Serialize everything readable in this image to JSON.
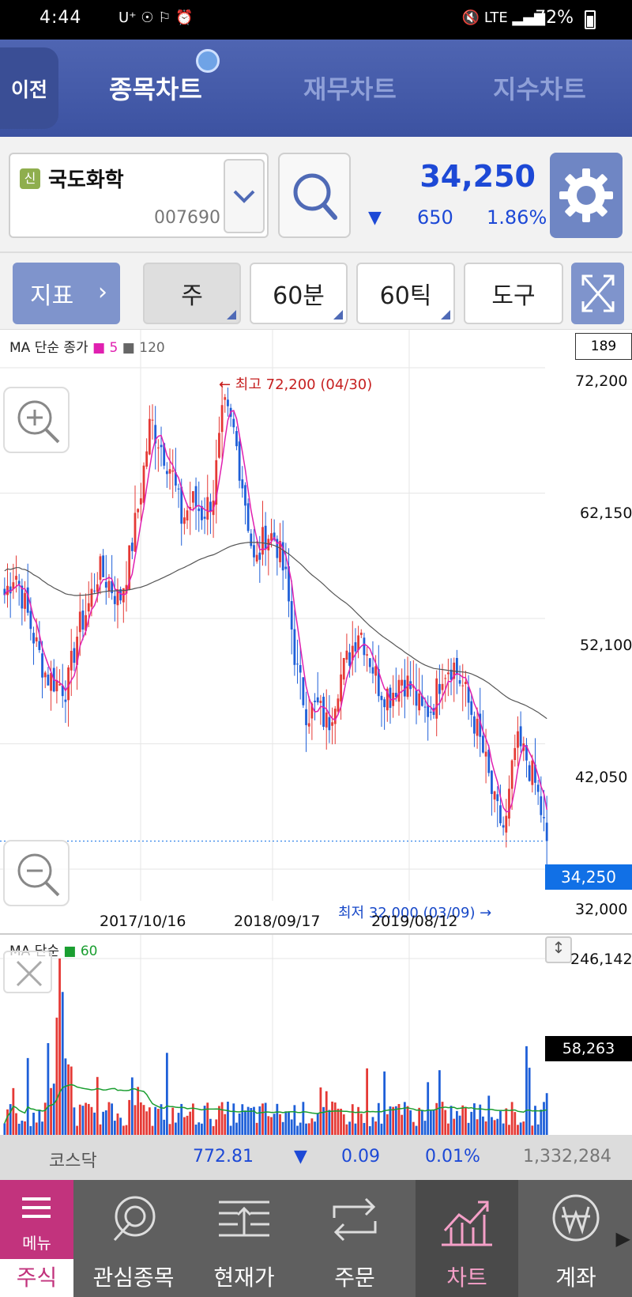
{
  "status_bar": {
    "time": "4:44",
    "carrier": "U⁺",
    "battery": "72%",
    "network": "LTE"
  },
  "header": {
    "back_label": "이전",
    "tabs": [
      {
        "label": "종목차트",
        "active": true
      },
      {
        "label": "재무차트",
        "active": false
      },
      {
        "label": "지수차트",
        "active": false
      }
    ]
  },
  "stock": {
    "market_badge": "신",
    "name": "국도화학",
    "code": "007690",
    "price": "34,250",
    "change_arrow": "▼",
    "change": "650",
    "change_pct": "1.86%"
  },
  "toolbar": {
    "indicator_label": "지표",
    "period_week": "주",
    "period_60min": "60분",
    "period_60tick": "60틱",
    "tools_label": "도구"
  },
  "chart": {
    "legend_prefix": "MA 단순 종가",
    "ma_short": "5",
    "ma_long": "120",
    "count": "189",
    "y_labels": [
      "72,200",
      "62,150",
      "52,100",
      "42,050",
      "32,000"
    ],
    "x_labels": [
      "2017/10/16",
      "2018/09/17",
      "2019/08/12"
    ],
    "current_price_tag": "34,250",
    "high_note": "← 최고 72,200 (04/30)",
    "low_note": "최저 32,000 (03/09) →"
  },
  "volume": {
    "legend_prefix": "MA 단순",
    "ma": "60",
    "max_label": "246,142",
    "current_label": "58,263"
  },
  "index_ticker": {
    "name": "코스닥",
    "value": "772.81",
    "arrow": "▼",
    "change": "0.09",
    "change_pct": "0.01%",
    "volume": "1,332,284"
  },
  "bottom_nav": {
    "menu_label": "메뉴",
    "stock_label": "주식",
    "items": [
      "관심종목",
      "현재가",
      "주문",
      "차트",
      "계좌"
    ]
  },
  "chart_data": {
    "type": "candlestick",
    "y_axis_ticks": [
      72200,
      62150,
      52100,
      42050,
      32000
    ],
    "ylim": [
      32000,
      72200
    ],
    "x_axis_ticks": [
      "2017/10/16",
      "2018/09/17",
      "2019/08/12"
    ],
    "high": {
      "value": 72200,
      "date": "04/30"
    },
    "low": {
      "value": 32000,
      "date": "03/09"
    },
    "last_close": 34250,
    "series": [
      {
        "name": "5"
      },
      {
        "name": "120"
      }
    ],
    "colors": {
      "up": "#e53935",
      "down": "#1e5fd8",
      "ma5": "#e020b0",
      "ma120": "#555555",
      "ma60_volume": "#1a9e30"
    },
    "close_path": [
      54000,
      56000,
      53000,
      50000,
      47500,
      47000,
      46500,
      51000,
      53000,
      56000,
      55000,
      53500,
      57000,
      62000,
      68000,
      66000,
      64000,
      60000,
      61500,
      60500,
      62000,
      69000,
      67000,
      62000,
      56000,
      59000,
      58500,
      55000,
      48000,
      44500,
      45000,
      43500,
      47000,
      49000,
      51500,
      49000,
      46500,
      46000,
      47500,
      46500,
      44500,
      45000,
      48000,
      48500,
      46500,
      44000,
      41000,
      37000,
      35000,
      42000,
      41000,
      38500,
      34250
    ],
    "volume": {
      "ylim": [
        0,
        246142
      ],
      "last": 58263
    }
  }
}
